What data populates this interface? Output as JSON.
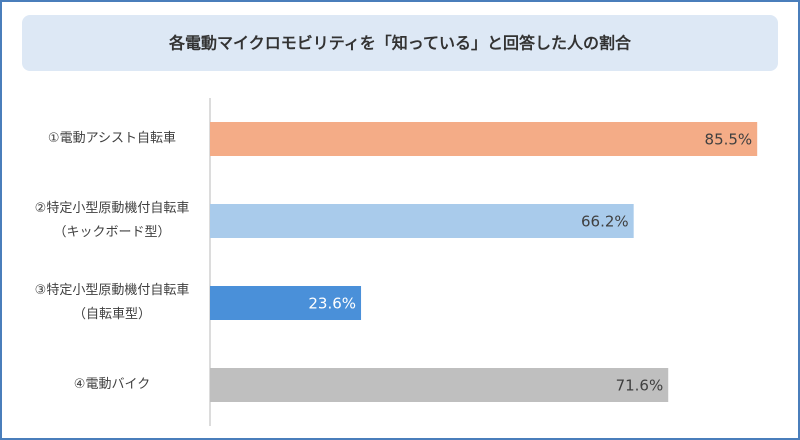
{
  "chart_data": {
    "type": "bar",
    "orientation": "horizontal",
    "title": "各電動マイクロモビリティを「知っている」と回答した人の割合",
    "categories": [
      "①電動アシスト自転車",
      "②特定小型原動機付自転車\n（キックボード型）",
      "③特定小型原動機付自転車\n（自転車型）",
      "④電動バイク"
    ],
    "values": [
      85.5,
      66.2,
      23.6,
      71.6
    ],
    "value_labels": [
      "85.5%",
      "66.2%",
      "23.6%",
      "71.6%"
    ],
    "colors": [
      "#f4ac87",
      "#a9cbeb",
      "#4a90d9",
      "#bfbfbf"
    ],
    "xlim": [
      0,
      90
    ]
  }
}
